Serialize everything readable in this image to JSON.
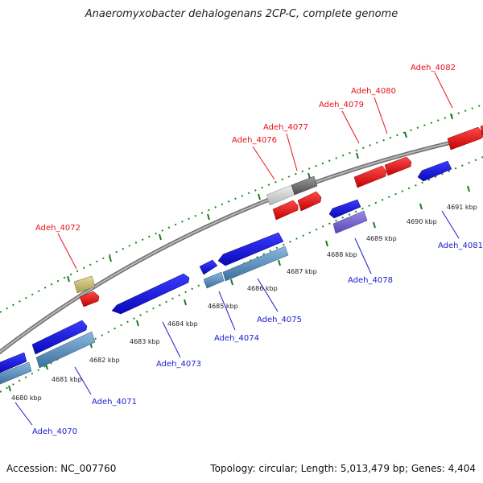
{
  "title": "Anaeromyxobacter dehalogenans 2CP-C, complete genome",
  "footer": {
    "accession": "Accession: NC_007760",
    "summary": "Topology: circular; Length: 5,013,479 bp; Genes: 4,404"
  },
  "colors": {
    "forward_label": "#e8101b",
    "reverse_label": "#1c1ccf",
    "tick": "#1a8a1a",
    "backbone": "#8a8a8a"
  },
  "scale_labels": [
    "4680 kbp",
    "4681 kbp",
    "4682 kbp",
    "4683 kbp",
    "4684 kbp",
    "4685 kbp",
    "4686 kbp",
    "4687 kbp",
    "4688 kbp",
    "4689 kbp",
    "4690 kbp",
    "4691 kbp"
  ],
  "genes": {
    "forward": [
      "Adeh_4072",
      "Adeh_4076",
      "Adeh_4077",
      "Adeh_4079",
      "Adeh_4080",
      "Adeh_4082"
    ],
    "reverse": [
      "Adeh_4070",
      "Adeh_4071",
      "Adeh_4073",
      "Adeh_4074",
      "Adeh_4075",
      "Adeh_4078",
      "Adeh_4081"
    ]
  }
}
